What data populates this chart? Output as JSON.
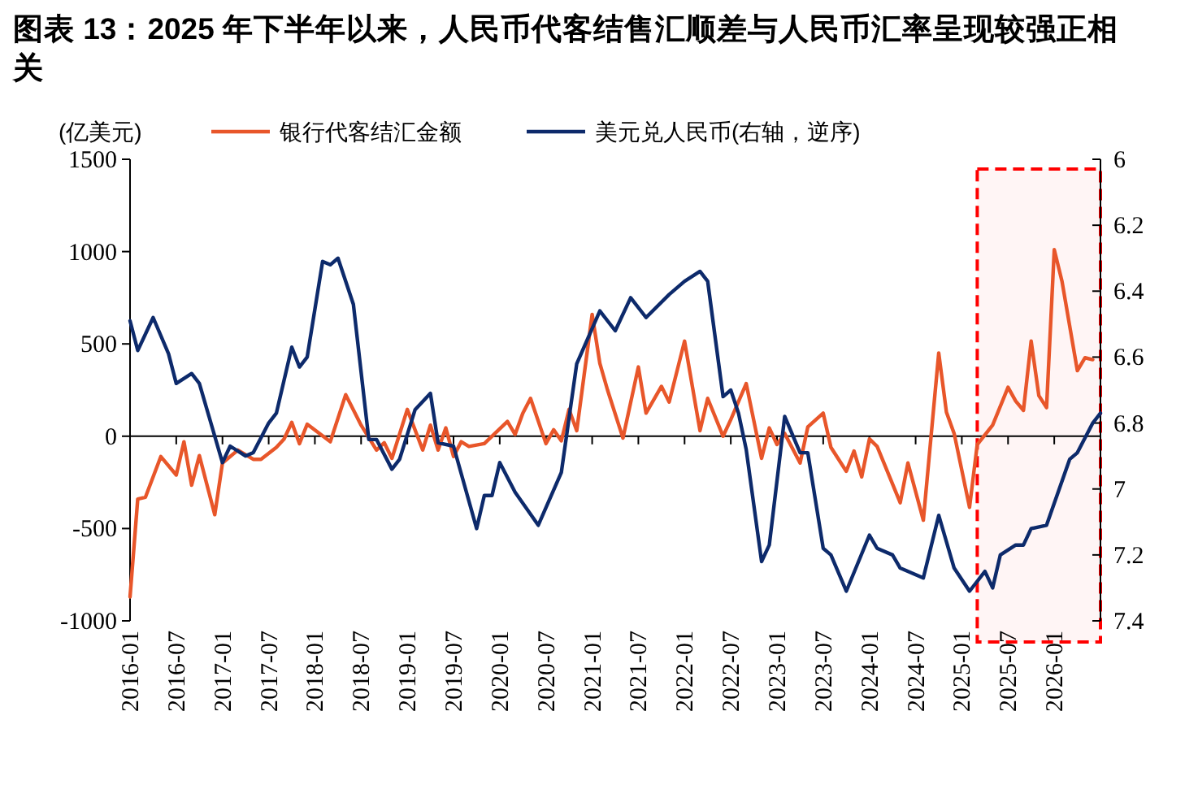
{
  "chart_data": {
    "type": "line",
    "title": "图表 13：2025 年下半年以来，人民币代客结售汇顺差与人民币汇率呈现较强正相关",
    "ylabel": "(亿美元)",
    "xlim": [
      "2016-01",
      "2026-07"
    ],
    "xticks": [
      "2016-01",
      "2016-07",
      "2017-01",
      "2017-07",
      "2018-01",
      "2018-07",
      "2019-01",
      "2019-07",
      "2020-01",
      "2020-07",
      "2021-01",
      "2021-07",
      "2022-01",
      "2022-07",
      "2023-01",
      "2023-07",
      "2024-01",
      "2024-07",
      "2025-01",
      "2025-07",
      "2026-01"
    ],
    "ylim": [
      -1000,
      1500
    ],
    "yticks": [
      -1000,
      -500,
      0,
      500,
      1000,
      1500
    ],
    "y2lim": [
      7.4,
      6
    ],
    "y2ticks": [
      6,
      6.2,
      6.4,
      6.6,
      6.8,
      7,
      7.2,
      7.4
    ],
    "legend": "top",
    "bands": [
      {
        "axis": "x",
        "from": "2025-03",
        "to": "2026-07",
        "color": "#ff0000"
      }
    ],
    "series": [
      {
        "name": "银行代客结汇金额",
        "color": "#e8562a",
        "x": [
          "2016-01",
          "2016-02",
          "2016-03",
          "2016-05",
          "2016-07",
          "2016-08",
          "2016-09",
          "2016-10",
          "2016-12",
          "2017-01",
          "2017-03",
          "2017-05",
          "2017-06",
          "2017-08",
          "2017-09",
          "2017-10",
          "2017-11",
          "2017-12",
          "2018-03",
          "2018-05",
          "2018-07",
          "2018-09",
          "2018-10",
          "2018-11",
          "2019-01",
          "2019-03",
          "2019-04",
          "2019-05",
          "2019-06",
          "2019-07",
          "2019-08",
          "2019-09",
          "2019-11",
          "2020-02",
          "2020-03",
          "2020-04",
          "2020-05",
          "2020-07",
          "2020-08",
          "2020-09",
          "2020-10",
          "2020-11",
          "2021-01",
          "2021-02",
          "2021-03",
          "2021-05",
          "2021-07",
          "2021-08",
          "2021-10",
          "2021-11",
          "2022-01",
          "2022-03",
          "2022-04",
          "2022-06",
          "2022-07",
          "2022-09",
          "2022-11",
          "2022-12",
          "2023-01",
          "2023-02",
          "2023-04",
          "2023-05",
          "2023-07",
          "2023-08",
          "2023-10",
          "2023-11",
          "2023-12",
          "2024-01",
          "2024-02",
          "2024-05",
          "2024-06",
          "2024-08",
          "2024-10",
          "2024-11",
          "2024-12",
          "2025-02",
          "2025-03",
          "2025-05",
          "2025-07",
          "2025-08",
          "2025-09",
          "2025-10",
          "2025-11",
          "2025-12",
          "2026-01",
          "2026-02",
          "2026-04",
          "2026-05",
          "2026-06"
        ],
        "values": [
          -870,
          -340,
          -330,
          -110,
          -210,
          -30,
          -265,
          -105,
          -425,
          -145,
          -75,
          -125,
          -125,
          -60,
          -15,
          75,
          -40,
          65,
          -30,
          225,
          60,
          -75,
          -35,
          -120,
          145,
          -75,
          60,
          -75,
          45,
          -110,
          -30,
          -55,
          -40,
          80,
          10,
          125,
          205,
          -40,
          35,
          -25,
          145,
          30,
          660,
          395,
          250,
          -10,
          375,
          125,
          270,
          185,
          515,
          30,
          205,
          0,
          90,
          285,
          -120,
          45,
          -45,
          15,
          -145,
          50,
          125,
          -60,
          -190,
          -80,
          -220,
          -15,
          -55,
          -360,
          -145,
          -455,
          450,
          130,
          15,
          -385,
          -45,
          60,
          265,
          190,
          140,
          515,
          220,
          155,
          1010,
          840,
          355,
          425,
          415
        ]
      },
      {
        "name": "美元兑人民币(右轴，逆序)",
        "color": "#0d2a6b",
        "axis": "y2",
        "x": [
          "2016-01",
          "2016-02",
          "2016-04",
          "2016-06",
          "2016-07",
          "2016-09",
          "2016-10",
          "2017-01",
          "2017-02",
          "2017-04",
          "2017-05",
          "2017-07",
          "2017-08",
          "2017-10",
          "2017-11",
          "2017-12",
          "2018-02",
          "2018-03",
          "2018-04",
          "2018-06",
          "2018-08",
          "2018-09",
          "2018-11",
          "2018-12",
          "2019-02",
          "2019-04",
          "2019-05",
          "2019-07",
          "2019-10",
          "2019-11",
          "2019-12",
          "2020-01",
          "2020-03",
          "2020-06",
          "2020-09",
          "2020-11",
          "2021-02",
          "2021-04",
          "2021-06",
          "2021-08",
          "2021-11",
          "2022-01",
          "2022-03",
          "2022-04",
          "2022-06",
          "2022-07",
          "2022-08",
          "2022-09",
          "2022-11",
          "2022-12",
          "2023-02",
          "2023-04",
          "2023-05",
          "2023-07",
          "2023-08",
          "2023-10",
          "2024-01",
          "2024-02",
          "2024-04",
          "2024-05",
          "2024-08",
          "2024-10",
          "2024-12",
          "2025-02",
          "2025-04",
          "2025-05",
          "2025-06",
          "2025-08",
          "2025-09",
          "2025-10",
          "2025-12",
          "2026-03",
          "2026-04",
          "2026-06",
          "2026-07"
        ],
        "values": [
          6.49,
          6.58,
          6.48,
          6.59,
          6.68,
          6.65,
          6.68,
          6.92,
          6.87,
          6.9,
          6.89,
          6.8,
          6.77,
          6.57,
          6.63,
          6.6,
          6.31,
          6.32,
          6.3,
          6.44,
          6.85,
          6.85,
          6.94,
          6.91,
          6.76,
          6.71,
          6.86,
          6.87,
          7.12,
          7.02,
          7.02,
          6.92,
          7.01,
          7.11,
          6.95,
          6.62,
          6.46,
          6.52,
          6.42,
          6.48,
          6.41,
          6.37,
          6.34,
          6.37,
          6.72,
          6.7,
          6.77,
          6.88,
          7.22,
          7.17,
          6.78,
          6.89,
          6.89,
          7.18,
          7.2,
          7.31,
          7.14,
          7.18,
          7.2,
          7.24,
          7.27,
          7.08,
          7.24,
          7.31,
          7.25,
          7.3,
          7.2,
          7.17,
          7.17,
          7.12,
          7.11,
          6.91,
          6.89,
          6.8,
          6.77
        ]
      }
    ]
  }
}
